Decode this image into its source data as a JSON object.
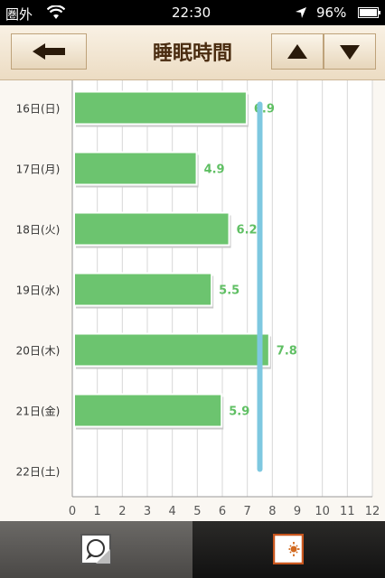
{
  "status_bar": {
    "carrier": "圏外",
    "time": "22:30",
    "battery": "96%"
  },
  "header": {
    "title": "睡眠時間"
  },
  "chart_data": {
    "type": "bar",
    "orientation": "horizontal",
    "categories": [
      "16日(日)",
      "17日(月)",
      "18日(火)",
      "19日(水)",
      "20日(木)",
      "21日(金)",
      "22日(土)"
    ],
    "values": [
      6.9,
      4.9,
      6.2,
      5.5,
      7.8,
      5.9,
      null
    ],
    "data_labels": [
      "6.9",
      "4.9",
      "6.2",
      "5.5",
      "7.8",
      "5.9",
      ""
    ],
    "average": 7.5,
    "xlim": [
      0,
      12
    ],
    "x_ticks": [
      "0",
      "1",
      "2",
      "3",
      "4",
      "5",
      "6",
      "7",
      "8",
      "9",
      "10",
      "11",
      "12"
    ],
    "grid": true,
    "colors": {
      "bar": "#6cc46f",
      "label": "#5fbf63",
      "average_line": "#7ec8e0"
    }
  },
  "icons": {
    "back": "arrow-left-icon",
    "up": "triangle-up-icon",
    "down": "triangle-down-icon",
    "tab_left": "speech-bubble-icon",
    "tab_right": "moon-sun-icon"
  }
}
